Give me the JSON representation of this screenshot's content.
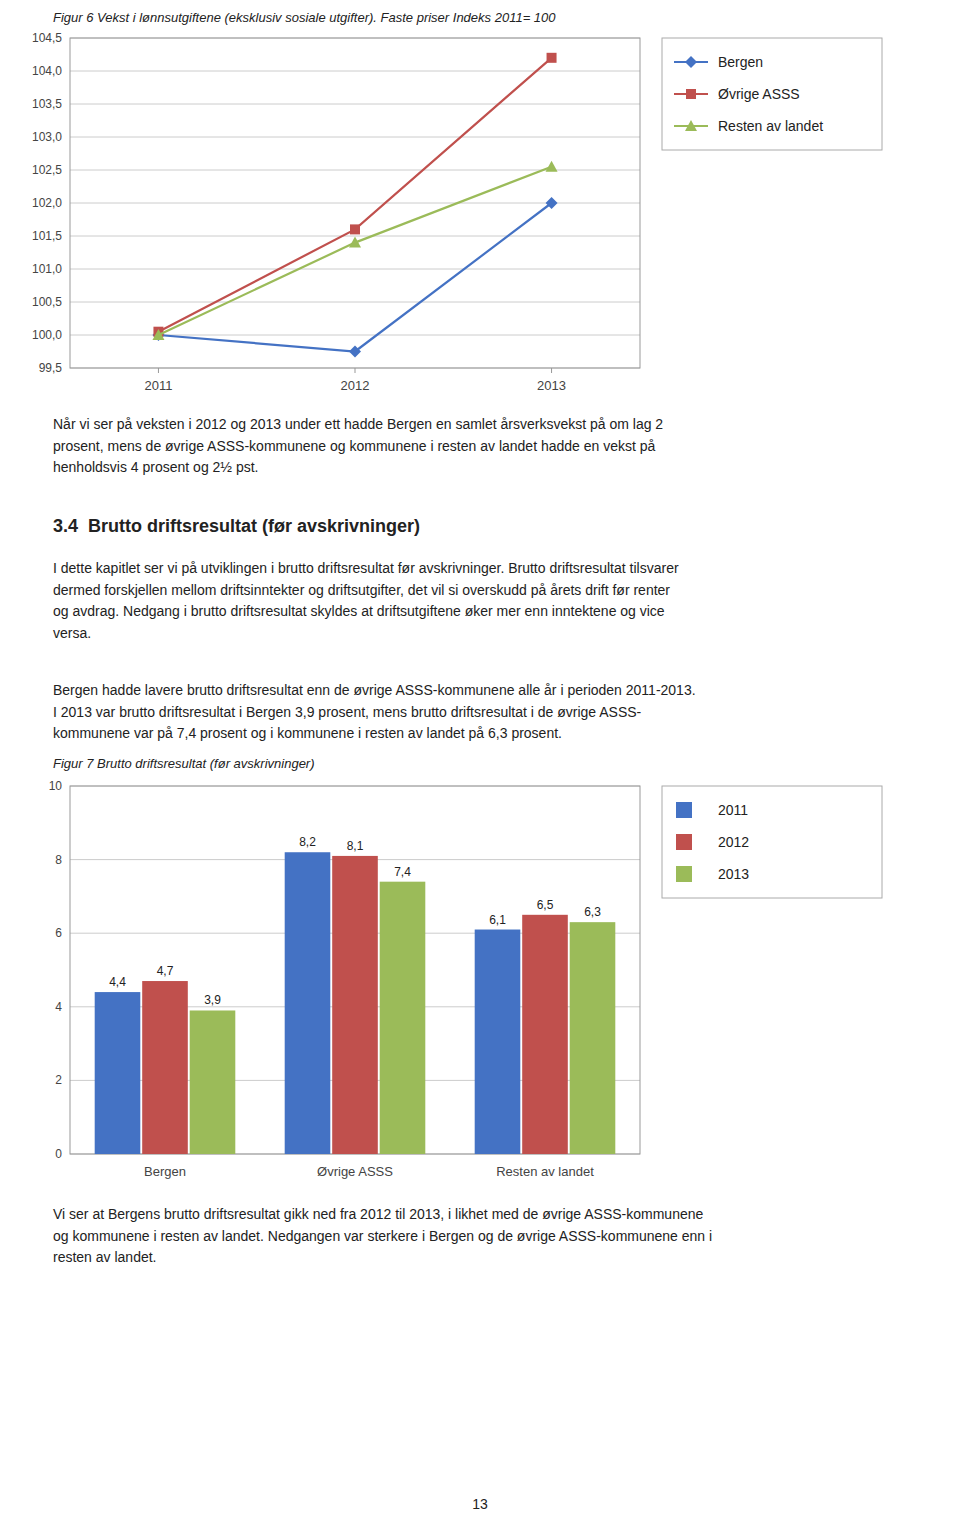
{
  "chart_data": [
    {
      "type": "line",
      "title": "Figur 6 Vekst i lønnsutgiftene (eksklusiv sosiale utgifter). Faste priser Indeks 2011= 100",
      "x": [
        2011,
        2012,
        2013
      ],
      "xlim": [
        2010.55,
        2013.45
      ],
      "xticks": [
        2011,
        2012,
        2013
      ],
      "ylim": [
        99.5,
        104.5
      ],
      "yticks": [
        {
          "value": 99.5,
          "label": "99,5"
        },
        {
          "value": 100.0,
          "label": "100,0"
        },
        {
          "value": 100.5,
          "label": "100,5"
        },
        {
          "value": 101.0,
          "label": "101,0"
        },
        {
          "value": 101.5,
          "label": "101,5"
        },
        {
          "value": 102.0,
          "label": "102,0"
        },
        {
          "value": 102.5,
          "label": "102,5"
        },
        {
          "value": 103.0,
          "label": "103,0"
        },
        {
          "value": 103.5,
          "label": "103,5"
        },
        {
          "value": 104.0,
          "label": "104,0"
        },
        {
          "value": 104.5,
          "label": "104,5"
        }
      ],
      "grid": true,
      "legend": "right",
      "series": [
        {
          "name": "Bergen",
          "color": "#4472C4",
          "marker": "diamond",
          "values": [
            100.0,
            99.75,
            102.0
          ]
        },
        {
          "name": "Øvrige ASSS",
          "color": "#C0504D",
          "marker": "square",
          "values": [
            100.05,
            101.6,
            104.2
          ]
        },
        {
          "name": "Resten av landet",
          "color": "#9BBB59",
          "marker": "triangle",
          "values": [
            100.0,
            101.4,
            102.55
          ]
        }
      ]
    },
    {
      "type": "bar",
      "title": "Figur 7 Brutto driftsresultat (før avskrivninger)",
      "categories": [
        "Bergen",
        "Øvrige ASSS",
        "Resten av landet"
      ],
      "ylim": [
        0,
        10
      ],
      "yticks": [
        0,
        2,
        4,
        6,
        8,
        10
      ],
      "grid": true,
      "legend": "right",
      "data_labels": true,
      "series": [
        {
          "name": "2011",
          "color": "#4472C4",
          "values": [
            4.4,
            8.2,
            6.1
          ],
          "value_labels": [
            "4,4",
            "8,2",
            "6,1"
          ]
        },
        {
          "name": "2012",
          "color": "#C0504D",
          "values": [
            4.7,
            8.1,
            6.5
          ],
          "value_labels": [
            "4,7",
            "8,1",
            "6,5"
          ]
        },
        {
          "name": "2013",
          "color": "#9BBB59",
          "values": [
            3.9,
            7.4,
            6.3
          ],
          "value_labels": [
            "3,9",
            "7,4",
            "6,3"
          ]
        }
      ]
    }
  ],
  "page_texts": {
    "text1": "Når vi ser på veksten i 2012 og 2013 under ett hadde Bergen en samlet årsverksvekst på om lag 2\nprosent, mens de øvrige ASSS-kommunene og kommunene i resten av landet hadde en vekst på\nhenholdsvis 4 prosent og 2½ pst.",
    "section_title": "3.4  Brutto driftsresultat (før avskrivninger)",
    "text2": "I dette kapitlet ser vi på utviklingen i brutto driftsresultat før avskrivninger. Brutto driftsresultat tilsvarer\ndermed forskjellen mellom driftsinntekter og driftsutgifter, det vil si overskudd på årets drift før renter\nog avdrag. Nedgang i brutto driftsresultat skyldes at driftsutgiftene øker mer enn inntektene og vice\nversa.",
    "text3": "Bergen hadde lavere brutto driftsresultat enn de øvrige ASSS-kommunene alle år i perioden 2011-2013.\nI 2013 var brutto driftsresultat i Bergen 3,9 prosent, mens brutto driftsresultat i de øvrige ASSS-\nkommunene var på 7,4 prosent og i kommunene i resten av landet på 6,3 prosent.",
    "text4": "Vi ser at Bergens brutto driftsresultat gikk ned fra 2012 til 2013, i likhet med de øvrige ASSS-kommunene\nog kommunene i resten av landet. Nedgangen var sterkere i Bergen og de øvrige ASSS-kommunene enn i\nresten av landet.",
    "page_number": "13"
  }
}
